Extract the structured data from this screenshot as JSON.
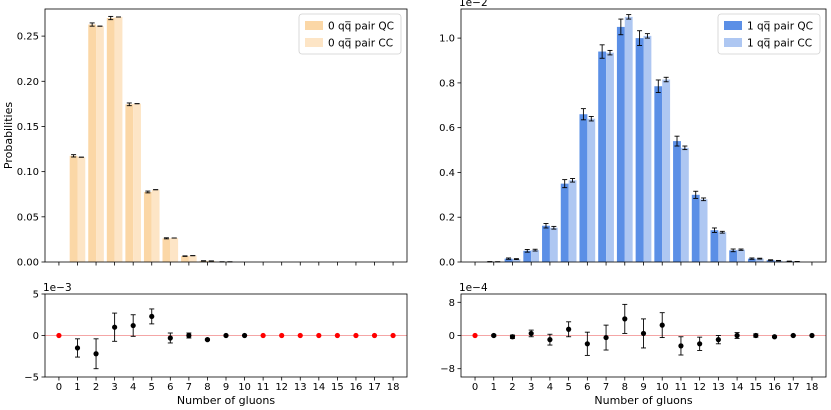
{
  "chart_data": [
    {
      "type": "bar",
      "panel": "top-left",
      "title": "",
      "xlabel": "",
      "ylabel": "Probabilities",
      "x": [
        0,
        1,
        2,
        3,
        4,
        5,
        6,
        7,
        8,
        9,
        10,
        11,
        12,
        13,
        14,
        15,
        16,
        17,
        18
      ],
      "ylim": [
        0,
        0.28
      ],
      "yticks": [
        0.0,
        0.05,
        0.1,
        0.15,
        0.2,
        0.25
      ],
      "ytick_labels": [
        "0.00",
        "0.05",
        "0.10",
        "0.15",
        "0.20",
        "0.25"
      ],
      "scale_label": "",
      "legend_position": "top-right",
      "series": [
        {
          "name": "0 q̅q pair QC",
          "legend_label": "0 qq̅ pair QC",
          "color": "#fbd7a6",
          "values": [
            0,
            0.1175,
            0.2628,
            0.27,
            0.1745,
            0.0775,
            0.0262,
            0.0065,
            0.0013,
            0.0002,
            0.0,
            0,
            0,
            0,
            0,
            0,
            0,
            0,
            0
          ],
          "errors": [
            0,
            0.0013,
            0.0018,
            0.0018,
            0.0015,
            0.001,
            0.0006,
            0.0003,
            0.0001,
            0,
            0,
            0,
            0,
            0,
            0,
            0,
            0,
            0,
            0
          ]
        },
        {
          "name": "0 q̅q pair CC",
          "legend_label": "0 qq̅ pair CC",
          "color": "#fde5c6",
          "values": [
            0,
            0.116,
            0.261,
            0.2712,
            0.1752,
            0.08,
            0.0265,
            0.007,
            0.0012,
            0.0002,
            0.0,
            0,
            0,
            0,
            0,
            0,
            0,
            0,
            0
          ],
          "errors": [
            0,
            0,
            0,
            0,
            0,
            0,
            0,
            0,
            0,
            0,
            0,
            0,
            0,
            0,
            0,
            0,
            0,
            0,
            0
          ]
        }
      ]
    },
    {
      "type": "bar",
      "panel": "top-right",
      "title": "",
      "xlabel": "",
      "ylabel": "",
      "x": [
        0,
        1,
        2,
        3,
        4,
        5,
        6,
        7,
        8,
        9,
        10,
        11,
        12,
        13,
        14,
        15,
        16,
        17,
        18
      ],
      "ylim": [
        0,
        1.13
      ],
      "yticks": [
        0.0,
        0.2,
        0.4,
        0.6,
        0.8,
        1.0
      ],
      "ytick_labels": [
        "0.0",
        "0.2",
        "0.4",
        "0.6",
        "0.8",
        "1.0"
      ],
      "scale_label": "1e−2",
      "legend_position": "top-right",
      "series": [
        {
          "name": "1 qq̅ pair QC",
          "legend_label": "1 qq̅ pair QC",
          "color": "#5b8fe6",
          "values": [
            0.0,
            0.001,
            0.015,
            0.05,
            0.162,
            0.35,
            0.66,
            0.94,
            1.05,
            1.0,
            0.785,
            0.54,
            0.3,
            0.142,
            0.052,
            0.015,
            0.008,
            0.003,
            0.0
          ],
          "errors": [
            0,
            0.001,
            0.003,
            0.006,
            0.01,
            0.018,
            0.025,
            0.03,
            0.035,
            0.033,
            0.028,
            0.022,
            0.016,
            0.01,
            0.006,
            0.003,
            0.002,
            0.001,
            0
          ]
        },
        {
          "name": "1 qq̅ pair CC",
          "legend_label": "1 qq̅ pair CC",
          "color": "#aec7f2",
          "values": [
            0.0,
            0.001,
            0.013,
            0.053,
            0.153,
            0.365,
            0.64,
            0.935,
            1.095,
            1.01,
            0.815,
            0.51,
            0.28,
            0.133,
            0.055,
            0.015,
            0.006,
            0.002,
            0.0
          ],
          "errors": [
            0,
            0,
            0.002,
            0.004,
            0.006,
            0.008,
            0.01,
            0.01,
            0.01,
            0.01,
            0.01,
            0.008,
            0.006,
            0.004,
            0.003,
            0.002,
            0.001,
            0,
            0
          ]
        }
      ]
    },
    {
      "type": "scatter",
      "panel": "bottom-left",
      "title": "",
      "xlabel": "Number of gluons",
      "ylabel": "",
      "x": [
        0,
        1,
        2,
        3,
        4,
        5,
        6,
        7,
        8,
        9,
        10,
        11,
        12,
        13,
        14,
        15,
        16,
        17,
        18
      ],
      "ylim": [
        -5,
        5
      ],
      "yticks": [
        -5,
        0,
        5
      ],
      "ytick_labels": [
        "−5",
        "0",
        "5"
      ],
      "scale_label": "1e−3",
      "values": [
        0,
        -1.5,
        -2.2,
        1.0,
        1.2,
        2.3,
        -0.3,
        0.0,
        -0.5,
        0.0,
        0.0,
        0,
        0,
        0,
        0,
        0,
        0,
        0,
        0
      ],
      "errors": [
        0,
        1.1,
        1.8,
        1.7,
        1.3,
        0.9,
        0.6,
        0.3,
        0.1,
        0.05,
        0.02,
        0,
        0,
        0,
        0,
        0,
        0,
        0,
        0
      ],
      "zero_marker_indices": [
        0,
        11,
        12,
        13,
        14,
        15,
        16,
        17,
        18
      ]
    },
    {
      "type": "scatter",
      "panel": "bottom-right",
      "title": "",
      "xlabel": "Number of gluons",
      "ylabel": "",
      "x": [
        0,
        1,
        2,
        3,
        4,
        5,
        6,
        7,
        8,
        9,
        10,
        11,
        12,
        13,
        14,
        15,
        16,
        17,
        18
      ],
      "ylim": [
        -10,
        10
      ],
      "yticks": [
        -8,
        0,
        8
      ],
      "ytick_labels": [
        "−8",
        "0",
        "8"
      ],
      "scale_label": "1e−4",
      "values": [
        0,
        0.0,
        -0.3,
        0.5,
        -1.0,
        1.5,
        -2.0,
        -0.5,
        4.0,
        0.5,
        2.5,
        -2.5,
        -2.0,
        -1.0,
        0.0,
        0.0,
        -0.3,
        0.0,
        0
      ],
      "errors": [
        0,
        0.2,
        0.4,
        0.8,
        1.3,
        1.8,
        2.8,
        3.0,
        3.5,
        3.5,
        3.0,
        2.2,
        1.6,
        1.0,
        0.7,
        0.4,
        0.2,
        0.1,
        0
      ],
      "zero_marker_indices": [
        0
      ]
    }
  ]
}
